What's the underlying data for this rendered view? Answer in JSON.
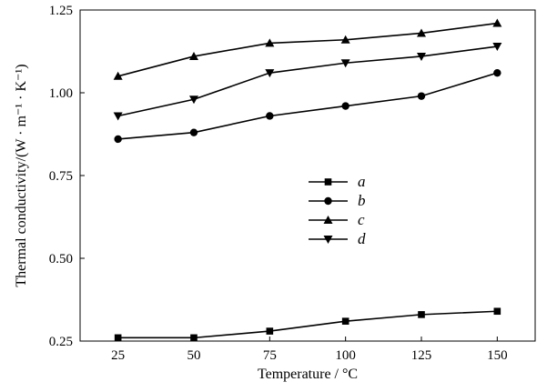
{
  "chart_data": {
    "type": "line",
    "xlabel": "Temperature / °C",
    "ylabel": "Thermal conductivity/(W · m⁻¹ · K⁻¹)",
    "x": [
      25,
      50,
      75,
      100,
      125,
      150
    ],
    "xlim": [
      12.5,
      162.5
    ],
    "ylim": [
      0.25,
      1.25
    ],
    "xticks": [
      25,
      50,
      75,
      100,
      125,
      150
    ],
    "yticks": [
      0.25,
      0.5,
      0.75,
      1.0,
      1.25
    ],
    "ytick_labels": [
      "0.25",
      "0.50",
      "0.75",
      "1.00",
      "1.25"
    ],
    "grid": false,
    "legend_position": "center",
    "series": [
      {
        "name": "a",
        "marker": "square",
        "values": [
          0.26,
          0.26,
          0.28,
          0.31,
          0.33,
          0.34
        ]
      },
      {
        "name": "b",
        "marker": "circle",
        "values": [
          0.86,
          0.88,
          0.93,
          0.96,
          0.99,
          1.06
        ]
      },
      {
        "name": "c",
        "marker": "triangle-up",
        "values": [
          1.05,
          1.11,
          1.15,
          1.16,
          1.18,
          1.21
        ]
      },
      {
        "name": "d",
        "marker": "triangle-down",
        "values": [
          0.93,
          0.98,
          1.06,
          1.09,
          1.11,
          1.14
        ]
      }
    ]
  }
}
